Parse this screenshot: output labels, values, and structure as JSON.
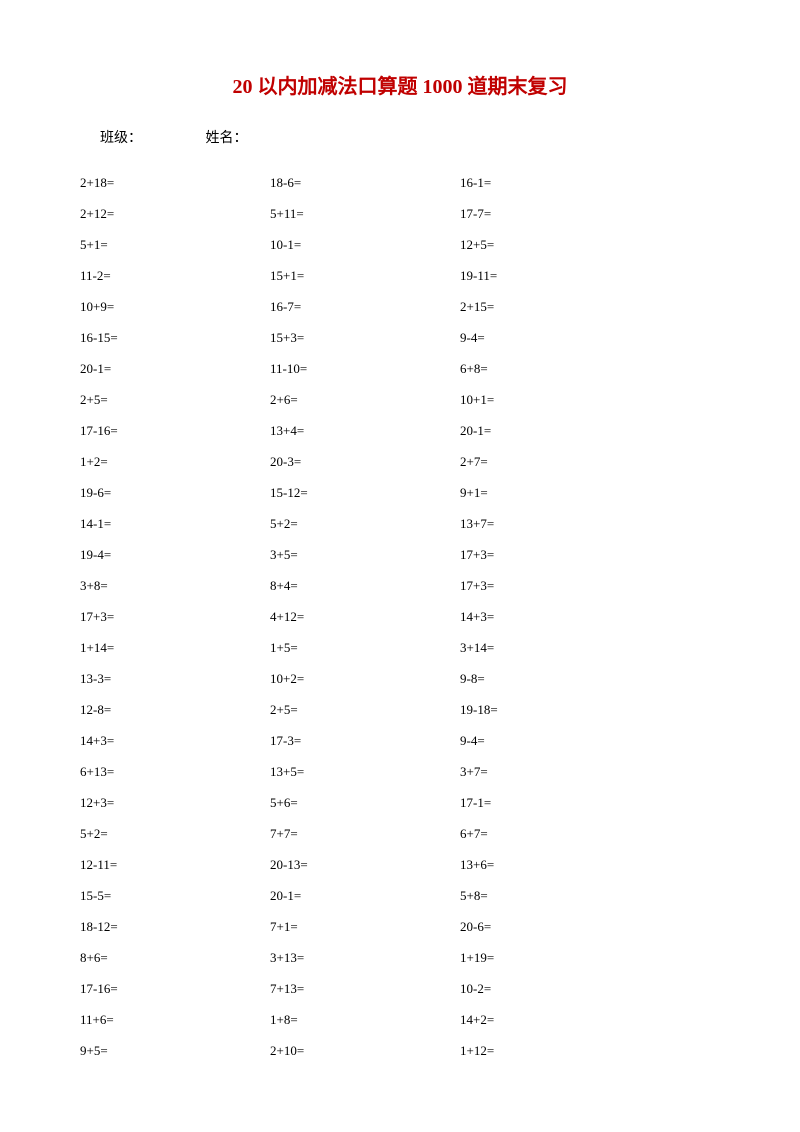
{
  "title": "20 以内加减法口算题 1000 道期末复习",
  "title_color": "#c00000",
  "header": {
    "class_label": "班级：",
    "name_label": "姓名："
  },
  "text_color": "#000000",
  "background_color": "#ffffff",
  "problems": {
    "col1": [
      "2+18=",
      "2+12=",
      "5+1=",
      "11-2=",
      "10+9=",
      "16-15=",
      "20-1=",
      "2+5=",
      "17-16=",
      "1+2=",
      "19-6=",
      "14-1=",
      "19-4=",
      "3+8=",
      "17+3=",
      "1+14=",
      "13-3=",
      "12-8=",
      "14+3=",
      "6+13=",
      "12+3=",
      "5+2=",
      "12-11=",
      "15-5=",
      "18-12=",
      "8+6=",
      "17-16=",
      "11+6=",
      "9+5="
    ],
    "col2": [
      "18-6=",
      "5+11=",
      "10-1=",
      "15+1=",
      "16-7=",
      "15+3=",
      "11-10=",
      "2+6=",
      "13+4=",
      "20-3=",
      "15-12=",
      "5+2=",
      "3+5=",
      "8+4=",
      "4+12=",
      "1+5=",
      "10+2=",
      "2+5=",
      "17-3=",
      "13+5=",
      "5+6=",
      "7+7=",
      "20-13=",
      "20-1=",
      "7+1=",
      "3+13=",
      "7+13=",
      "1+8=",
      "2+10="
    ],
    "col3": [
      "16-1=",
      "17-7=",
      "12+5=",
      "19-11=",
      "2+15=",
      "9-4=",
      "6+8=",
      "10+1=",
      "20-1=",
      "2+7=",
      "9+1=",
      "13+7=",
      "17+3=",
      "17+3=",
      "14+3=",
      "3+14=",
      "9-8=",
      "19-18=",
      "9-4=",
      "3+7=",
      "17-1=",
      "6+7=",
      "13+6=",
      "5+8=",
      "20-6=",
      "1+19=",
      "10-2=",
      "14+2=",
      "1+12="
    ]
  }
}
